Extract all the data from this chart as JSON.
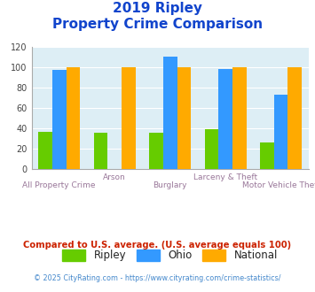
{
  "title_line1": "2019 Ripley",
  "title_line2": "Property Crime Comparison",
  "categories": [
    "All Property Crime",
    "Arson",
    "Burglary",
    "Larceny & Theft",
    "Motor Vehicle Theft"
  ],
  "ripley": [
    37,
    36,
    36,
    39,
    26
  ],
  "ohio": [
    97,
    0,
    110,
    98,
    73
  ],
  "national": [
    100,
    100,
    100,
    100,
    100
  ],
  "ripley_color": "#66cc00",
  "ohio_color": "#3399ff",
  "national_color": "#ffaa00",
  "ylim": [
    0,
    120
  ],
  "yticks": [
    0,
    20,
    40,
    60,
    80,
    100,
    120
  ],
  "bg_color": "#ddeef5",
  "title_color": "#1144cc",
  "xlabel_color": "#997799",
  "bar_width": 0.25,
  "footnote1": "Compared to U.S. average. (U.S. average equals 100)",
  "footnote2": "© 2025 CityRating.com - https://www.cityrating.com/crime-statistics/",
  "footnote1_color": "#cc2200",
  "footnote2_color": "#4488cc",
  "legend_labels": [
    "Ripley",
    "Ohio",
    "National"
  ],
  "top_xlabels": [
    "",
    "Arson",
    "",
    "Larceny & Theft",
    ""
  ],
  "bot_xlabels": [
    "All Property Crime",
    "",
    "Burglary",
    "",
    "Motor Vehicle Theft"
  ]
}
